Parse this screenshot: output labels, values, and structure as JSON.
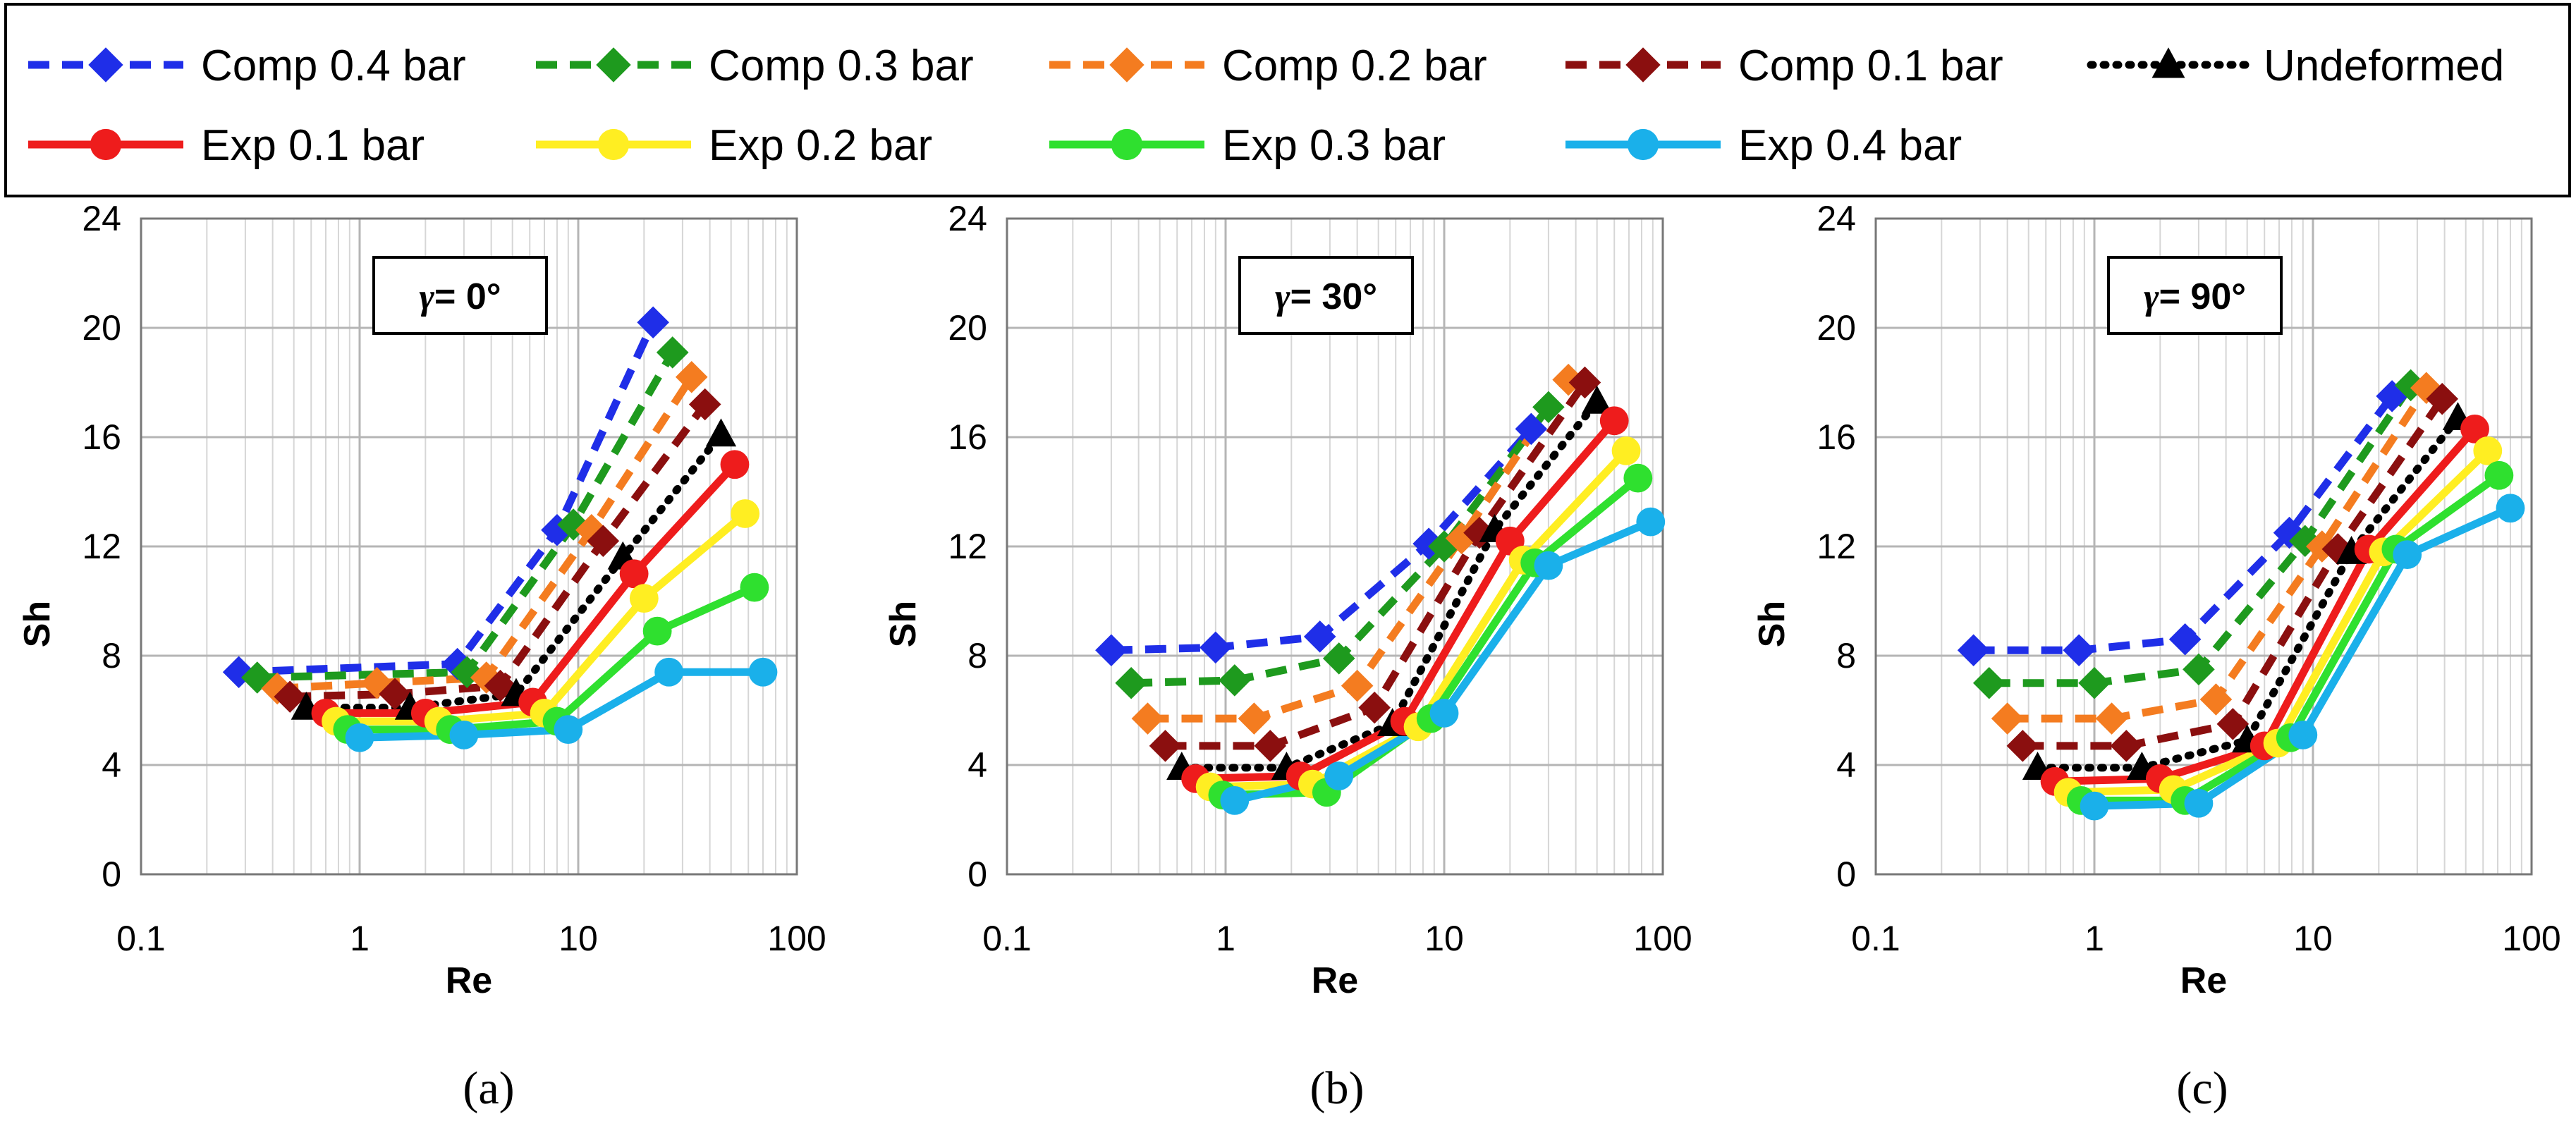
{
  "legend": [
    {
      "key": "comp04",
      "label": "Comp 0.4 bar",
      "color": "#1f2ee8",
      "dash": "dash",
      "marker": "diamond"
    },
    {
      "key": "comp03",
      "label": "Comp 0.3 bar",
      "color": "#1e9a1e",
      "dash": "dash",
      "marker": "diamond"
    },
    {
      "key": "comp02",
      "label": "Comp 0.2 bar",
      "color": "#f47c20",
      "dash": "dash",
      "marker": "diamond"
    },
    {
      "key": "comp01",
      "label": "Comp 0.1 bar",
      "color": "#8b0f0f",
      "dash": "dash",
      "marker": "diamond"
    },
    {
      "key": "undef",
      "label": "Undeformed",
      "color": "#000000",
      "dash": "dot",
      "marker": "triangle"
    },
    {
      "key": "exp01",
      "label": "Exp 0.1 bar",
      "color": "#ee1c1c",
      "dash": "solid",
      "marker": "circle"
    },
    {
      "key": "exp02",
      "label": "Exp 0.2 bar",
      "color": "#ffee22",
      "dash": "solid",
      "marker": "circle"
    },
    {
      "key": "exp03",
      "label": "Exp 0.3 bar",
      "color": "#2fe02f",
      "dash": "solid",
      "marker": "circle"
    },
    {
      "key": "exp04",
      "label": "Exp 0.4 bar",
      "color": "#1ab0ea",
      "dash": "solid",
      "marker": "circle"
    }
  ],
  "chart_data": [
    {
      "type": "line",
      "panel": "(a)",
      "title_symbol": "γ",
      "title": "= 0°",
      "xlabel": "Re",
      "ylabel": "Sh",
      "xscale": "log",
      "xlim": [
        0.1,
        100
      ],
      "ylim": [
        0,
        24
      ],
      "xticks": [
        "0.1",
        "1",
        "10",
        "100"
      ],
      "yticks": [
        "0",
        "4",
        "8",
        "12",
        "16",
        "20",
        "24"
      ],
      "series": [
        {
          "key": "comp04",
          "name": "Comp 0.4 bar",
          "x": [
            0.28,
            2.8,
            8,
            22
          ],
          "y": [
            7.4,
            7.7,
            12.6,
            20.2
          ]
        },
        {
          "key": "comp03",
          "name": "Comp 0.3 bar",
          "x": [
            0.34,
            3.1,
            9.5,
            27
          ],
          "y": [
            7.2,
            7.4,
            12.8,
            19.1
          ]
        },
        {
          "key": "comp02",
          "name": "Comp 0.2 bar",
          "x": [
            0.42,
            1.2,
            3.8,
            11.5,
            33
          ],
          "y": [
            6.8,
            7.0,
            7.2,
            12.6,
            18.2
          ]
        },
        {
          "key": "comp01",
          "name": "Comp 0.1 bar",
          "x": [
            0.48,
            1.45,
            4.4,
            13,
            38
          ],
          "y": [
            6.5,
            6.6,
            6.9,
            12.2,
            17.2
          ]
        },
        {
          "key": "undef",
          "name": "Undeformed",
          "x": [
            0.57,
            1.7,
            5.2,
            16,
            45
          ],
          "y": [
            6.1,
            6.1,
            6.6,
            11.6,
            16.1
          ]
        },
        {
          "key": "exp01",
          "name": "Exp 0.1 bar",
          "x": [
            0.7,
            2.0,
            6.2,
            18,
            52
          ],
          "y": [
            5.9,
            5.9,
            6.3,
            11.0,
            15.0
          ]
        },
        {
          "key": "exp02",
          "name": "Exp 0.2 bar",
          "x": [
            0.78,
            2.3,
            7.0,
            20,
            58
          ],
          "y": [
            5.6,
            5.6,
            5.9,
            10.1,
            13.2
          ]
        },
        {
          "key": "exp03",
          "name": "Exp 0.3 bar",
          "x": [
            0.88,
            2.6,
            8.0,
            23,
            64
          ],
          "y": [
            5.3,
            5.3,
            5.6,
            8.9,
            10.5
          ]
        },
        {
          "key": "exp04",
          "name": "Exp 0.4 bar",
          "x": [
            1.0,
            3.0,
            9.0,
            26,
            70
          ],
          "y": [
            5.0,
            5.1,
            5.3,
            7.4,
            7.4
          ]
        }
      ]
    },
    {
      "type": "line",
      "panel": "(b)",
      "title_symbol": "γ",
      "title": "= 30°",
      "xlabel": "Re",
      "ylabel": "Sh",
      "xscale": "log",
      "xlim": [
        0.1,
        100
      ],
      "ylim": [
        0,
        24
      ],
      "xticks": [
        "0.1",
        "1",
        "10",
        "100"
      ],
      "yticks": [
        "0",
        "4",
        "8",
        "12",
        "16",
        "20",
        "24"
      ],
      "series": [
        {
          "key": "comp04",
          "name": "Comp 0.4 bar",
          "x": [
            0.3,
            0.9,
            2.7,
            8.5,
            25
          ],
          "y": [
            8.2,
            8.3,
            8.7,
            12.1,
            16.3
          ]
        },
        {
          "key": "comp03",
          "name": "Comp 0.3 bar",
          "x": [
            0.37,
            1.1,
            3.3,
            10,
            30
          ],
          "y": [
            7.0,
            7.1,
            7.9,
            12.0,
            17.1
          ]
        },
        {
          "key": "comp02",
          "name": "Comp 0.2 bar",
          "x": [
            0.44,
            1.35,
            4.0,
            12,
            37
          ],
          "y": [
            5.7,
            5.7,
            6.9,
            12.3,
            18.1
          ]
        },
        {
          "key": "comp01",
          "name": "Comp 0.1 bar",
          "x": [
            0.53,
            1.6,
            4.8,
            14.5,
            44
          ],
          "y": [
            4.7,
            4.7,
            6.1,
            12.5,
            18.0
          ]
        },
        {
          "key": "undef",
          "name": "Undeformed",
          "x": [
            0.63,
            1.9,
            5.8,
            17,
            50
          ],
          "y": [
            3.9,
            3.9,
            5.5,
            12.6,
            17.3
          ]
        },
        {
          "key": "exp01",
          "name": "Exp 0.1 bar",
          "x": [
            0.73,
            2.2,
            6.6,
            20,
            60
          ],
          "y": [
            3.5,
            3.6,
            5.6,
            12.2,
            16.6
          ]
        },
        {
          "key": "exp02",
          "name": "Exp 0.2 bar",
          "x": [
            0.85,
            2.5,
            7.6,
            23,
            68
          ],
          "y": [
            3.2,
            3.3,
            5.4,
            11.5,
            15.5
          ]
        },
        {
          "key": "exp03",
          "name": "Exp 0.3 bar",
          "x": [
            0.97,
            2.9,
            8.7,
            26,
            77
          ],
          "y": [
            2.9,
            3.0,
            5.7,
            11.4,
            14.5
          ]
        },
        {
          "key": "exp04",
          "name": "Exp 0.4 bar",
          "x": [
            1.1,
            3.3,
            10,
            30,
            88
          ],
          "y": [
            2.7,
            3.6,
            5.9,
            11.3,
            12.9
          ]
        }
      ]
    },
    {
      "type": "line",
      "panel": "(c)",
      "title_symbol": "γ",
      "title": "= 90°",
      "xlabel": "Re",
      "ylabel": "Sh",
      "xscale": "log",
      "xlim": [
        0.1,
        100
      ],
      "ylim": [
        0,
        24
      ],
      "xticks": [
        "0.1",
        "1",
        "10",
        "100"
      ],
      "yticks": [
        "0",
        "4",
        "8",
        "12",
        "16",
        "20",
        "24"
      ],
      "series": [
        {
          "key": "comp04",
          "name": "Comp 0.4 bar",
          "x": [
            0.28,
            0.85,
            2.6,
            7.8,
            23
          ],
          "y": [
            8.2,
            8.2,
            8.6,
            12.5,
            17.5
          ]
        },
        {
          "key": "comp03",
          "name": "Comp 0.3 bar",
          "x": [
            0.33,
            1.0,
            3.0,
            9.2,
            28
          ],
          "y": [
            7.0,
            7.0,
            7.5,
            12.2,
            17.9
          ]
        },
        {
          "key": "comp02",
          "name": "Comp 0.2 bar",
          "x": [
            0.4,
            1.2,
            3.6,
            11,
            33
          ],
          "y": [
            5.7,
            5.7,
            6.4,
            12.0,
            17.8
          ]
        },
        {
          "key": "comp01",
          "name": "Comp 0.1 bar",
          "x": [
            0.47,
            1.4,
            4.3,
            13,
            39
          ],
          "y": [
            4.7,
            4.7,
            5.5,
            11.9,
            17.4
          ]
        },
        {
          "key": "undef",
          "name": "Undeformed",
          "x": [
            0.55,
            1.65,
            5.0,
            15,
            46
          ],
          "y": [
            3.9,
            3.9,
            4.9,
            11.8,
            16.7
          ]
        },
        {
          "key": "exp01",
          "name": "Exp 0.1 bar",
          "x": [
            0.66,
            2.0,
            6.0,
            18,
            55
          ],
          "y": [
            3.4,
            3.5,
            4.7,
            11.9,
            16.3
          ]
        },
        {
          "key": "exp02",
          "name": "Exp 0.2 bar",
          "x": [
            0.76,
            2.3,
            6.9,
            21,
            63
          ],
          "y": [
            3.0,
            3.1,
            4.8,
            11.8,
            15.5
          ]
        },
        {
          "key": "exp03",
          "name": "Exp 0.3 bar",
          "x": [
            0.87,
            2.6,
            7.9,
            24,
            71
          ],
          "y": [
            2.7,
            2.7,
            5.0,
            11.9,
            14.6
          ]
        },
        {
          "key": "exp04",
          "name": "Exp 0.4 bar",
          "x": [
            1.0,
            3.0,
            9.0,
            27,
            80
          ],
          "y": [
            2.5,
            2.6,
            5.1,
            11.7,
            13.4
          ]
        }
      ]
    }
  ]
}
